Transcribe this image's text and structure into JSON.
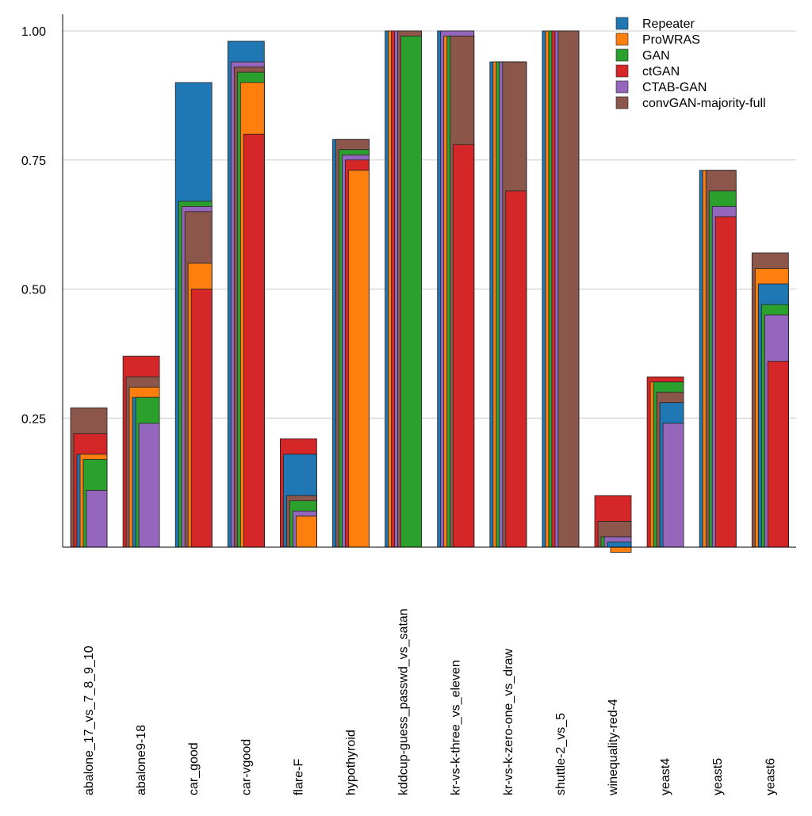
{
  "chart_data": {
    "type": "bar",
    "title": "",
    "xlabel": "",
    "ylabel": "",
    "ylim": [
      0,
      1.0
    ],
    "yticks": [
      0.25,
      0.5,
      0.75,
      1.0
    ],
    "ytick_labels": [
      "0.25",
      "0.50",
      "0.75",
      "1.00"
    ],
    "grid": "horizontal",
    "legend_position": "top-right",
    "categories": [
      "abalone_17_vs_7_8_9_10",
      "abalone9-18",
      "car_good",
      "car-vgood",
      "flare-F",
      "hypothyroid",
      "kddcup-guess_passwd_vs_satan",
      "kr-vs-k-three_vs_eleven",
      "kr-vs-k-zero-one_vs_draw",
      "shuttle-2_vs_5",
      "winequality-red-4",
      "yeast4",
      "yeast5",
      "yeast6"
    ],
    "series": [
      {
        "name": "Repeater",
        "color": "#1f77b4",
        "values": [
          0.18,
          0.29,
          0.9,
          0.98,
          0.18,
          0.79,
          1.0,
          1.0,
          0.94,
          1.0,
          0.01,
          0.28,
          0.73,
          0.51
        ]
      },
      {
        "name": "ProWRAS",
        "color": "#ff7f0e",
        "values": [
          0.18,
          0.31,
          0.55,
          0.9,
          0.06,
          0.73,
          1.0,
          0.99,
          0.94,
          1.0,
          -0.01,
          0.32,
          0.73,
          0.54
        ]
      },
      {
        "name": "GAN",
        "color": "#2ca02c",
        "values": [
          0.17,
          0.29,
          0.67,
          0.92,
          0.09,
          0.77,
          0.99,
          0.99,
          0.94,
          1.0,
          0.02,
          0.32,
          0.69,
          0.47
        ]
      },
      {
        "name": "ctGAN",
        "color": "#d62728",
        "values": [
          0.22,
          0.37,
          0.5,
          0.8,
          0.21,
          0.75,
          1.0,
          0.78,
          0.69,
          1.0,
          0.1,
          0.33,
          0.64,
          0.36
        ]
      },
      {
        "name": "CTAB-GAN",
        "color": "#9467bd",
        "values": [
          0.11,
          0.24,
          0.66,
          0.94,
          0.07,
          0.76,
          1.0,
          1.0,
          0.94,
          1.0,
          0.02,
          0.24,
          0.66,
          0.45
        ]
      },
      {
        "name": "convGAN-majority-full",
        "color": "#8c564b",
        "values": [
          0.27,
          0.33,
          0.65,
          0.93,
          0.1,
          0.79,
          1.0,
          0.99,
          0.94,
          1.0,
          0.05,
          0.3,
          0.73,
          0.57
        ]
      }
    ]
  }
}
